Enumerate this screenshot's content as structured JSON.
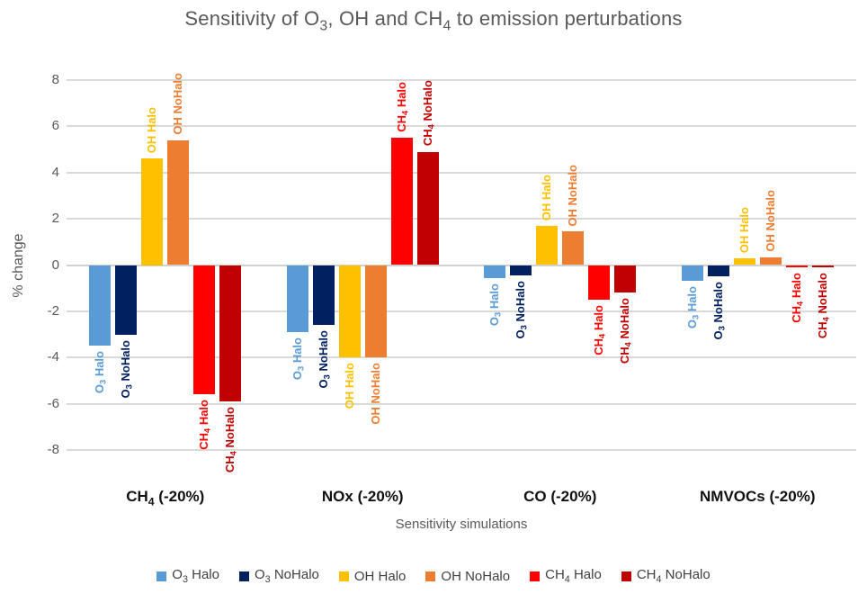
{
  "chart_data": {
    "type": "bar",
    "title": "Sensitivity of O3, OH and CH4 to emission perturbations",
    "xlabel": "Sensitivity simulations",
    "ylabel": "% change",
    "ylim": [
      -9.2,
      9.2
    ],
    "yticks": [
      8,
      6,
      4,
      2,
      0,
      -2,
      -4,
      -6,
      -8
    ],
    "grid": true,
    "legend_position": "bottom",
    "bar_label_rotation": 90,
    "gridline_color": "#D9D9D9",
    "title_color": "#595959",
    "axis_text_color": "#595959",
    "categories": [
      "CH4 (-20%)",
      "NOx (-20%)",
      "CO (-20%)",
      "NMVOCs (-20%)"
    ],
    "series": [
      {
        "name": "O3 Halo",
        "color": "#5B9BD5",
        "values": [
          -3.5,
          -2.9,
          -0.55,
          -0.7
        ]
      },
      {
        "name": "O3 NoHalo",
        "color": "#002060",
        "values": [
          -3.0,
          -2.6,
          -0.45,
          -0.5
        ]
      },
      {
        "name": "OH Halo",
        "color": "#FFC000",
        "values": [
          4.6,
          -4.0,
          1.7,
          0.3
        ]
      },
      {
        "name": "OH NoHalo",
        "color": "#ED7D31",
        "values": [
          5.4,
          -4.0,
          1.45,
          0.35
        ]
      },
      {
        "name": "CH4 Halo",
        "color": "#FF0000",
        "values": [
          -5.6,
          5.5,
          -1.5,
          -0.05
        ]
      },
      {
        "name": "CH4 NoHalo",
        "color": "#C00000",
        "values": [
          -5.9,
          4.9,
          -1.2,
          -0.05
        ]
      }
    ]
  }
}
